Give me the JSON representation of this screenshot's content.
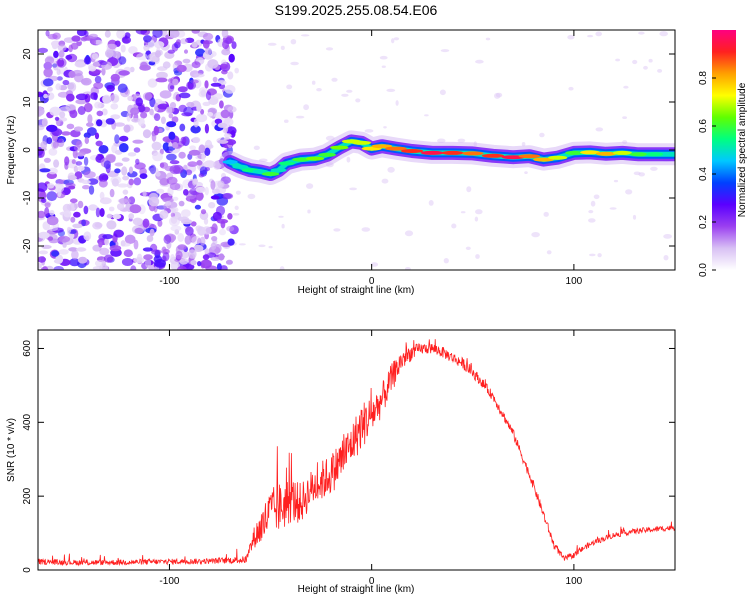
{
  "chart_data": [
    {
      "type": "heatmap",
      "title": "S199.2025.255.08.54.E06",
      "xlabel": "Height of straight line (km)",
      "ylabel": "Frequency (Hz)",
      "xlim": [
        -165,
        150
      ],
      "ylim": [
        -25,
        25
      ],
      "xticks": [
        -100,
        0,
        100
      ],
      "xtick_labels": [
        "-100",
        "0",
        "100"
      ],
      "yticks": [
        -20,
        -10,
        0,
        10,
        20
      ],
      "ytick_labels": [
        "-20",
        "-10",
        "0",
        "10",
        "20"
      ],
      "noise_region_x": [
        -165,
        -68
      ],
      "ridge": [
        {
          "x": -70,
          "y": -2.5,
          "amp": 0.45
        },
        {
          "x": -65,
          "y": -3.5,
          "amp": 0.5
        },
        {
          "x": -60,
          "y": -4.2,
          "amp": 0.55
        },
        {
          "x": -55,
          "y": -4.5,
          "amp": 0.5
        },
        {
          "x": -50,
          "y": -5.0,
          "amp": 0.6
        },
        {
          "x": -46,
          "y": -4.2,
          "amp": 0.5
        },
        {
          "x": -42,
          "y": -2.8,
          "amp": 0.55
        },
        {
          "x": -35,
          "y": -2.0,
          "amp": 0.6
        },
        {
          "x": -28,
          "y": -1.8,
          "amp": 0.65
        },
        {
          "x": -22,
          "y": -1.0,
          "amp": 0.6
        },
        {
          "x": -16,
          "y": 0.5,
          "amp": 0.65
        },
        {
          "x": -10,
          "y": 1.8,
          "amp": 0.7
        },
        {
          "x": -5,
          "y": 1.5,
          "amp": 0.7
        },
        {
          "x": 0,
          "y": 0.3,
          "amp": 0.75
        },
        {
          "x": 5,
          "y": 0.8,
          "amp": 0.8
        },
        {
          "x": 12,
          "y": 0.3,
          "amp": 0.85
        },
        {
          "x": 20,
          "y": -0.2,
          "amp": 0.9
        },
        {
          "x": 30,
          "y": -0.6,
          "amp": 0.95
        },
        {
          "x": 40,
          "y": -0.6,
          "amp": 0.9
        },
        {
          "x": 50,
          "y": -0.7,
          "amp": 0.85
        },
        {
          "x": 60,
          "y": -1.2,
          "amp": 0.9
        },
        {
          "x": 70,
          "y": -1.5,
          "amp": 0.95
        },
        {
          "x": 78,
          "y": -1.3,
          "amp": 0.85
        },
        {
          "x": 85,
          "y": -2.0,
          "amp": 0.8
        },
        {
          "x": 92,
          "y": -1.6,
          "amp": 0.7
        },
        {
          "x": 100,
          "y": -0.6,
          "amp": 0.6
        },
        {
          "x": 108,
          "y": -0.5,
          "amp": 0.75
        },
        {
          "x": 116,
          "y": -0.8,
          "amp": 0.8
        },
        {
          "x": 124,
          "y": -0.6,
          "amp": 0.7
        },
        {
          "x": 132,
          "y": -0.9,
          "amp": 0.6
        },
        {
          "x": 140,
          "y": -0.9,
          "amp": 0.55
        },
        {
          "x": 150,
          "y": -0.9,
          "amp": 0.5
        }
      ],
      "colorbar": {
        "label": "Normalized spectral amplitude",
        "ticks": [
          0.0,
          0.2,
          0.4,
          0.6,
          0.8
        ],
        "tick_labels": [
          "0.0",
          "0.2",
          "0.4",
          "0.6",
          "0.8"
        ],
        "range": [
          0,
          1
        ],
        "colors": [
          "#ffffff",
          "#d8c0f4",
          "#9b40f0",
          "#5a00ff",
          "#0040ff",
          "#00c8ff",
          "#00ff80",
          "#60ff00",
          "#ffff00",
          "#ffa000",
          "#ff2020",
          "#ff0080"
        ]
      }
    },
    {
      "type": "line",
      "title": "",
      "xlabel": "Height of straight line (km)",
      "ylabel": "SNR (10 * v/v)",
      "xlim": [
        -165,
        150
      ],
      "ylim": [
        0,
        650
      ],
      "xticks": [
        -100,
        0,
        100
      ],
      "xtick_labels": [
        "-100",
        "0",
        "100"
      ],
      "yticks": [
        0,
        200,
        400,
        600
      ],
      "ytick_labels": [
        "0",
        "200",
        "400",
        "600"
      ],
      "color": "#ff2020",
      "x": [
        -165,
        -140,
        -110,
        -80,
        -62,
        -58,
        -54,
        -50,
        -45,
        -40,
        -35,
        -30,
        -25,
        -20,
        -15,
        -10,
        -5,
        0,
        5,
        10,
        15,
        20,
        25,
        30,
        35,
        40,
        45,
        50,
        55,
        60,
        65,
        70,
        75,
        80,
        85,
        90,
        95,
        100,
        105,
        110,
        120,
        130,
        140,
        150
      ],
      "y": [
        22,
        20,
        22,
        24,
        28,
        90,
        120,
        160,
        170,
        190,
        180,
        220,
        240,
        260,
        300,
        340,
        390,
        420,
        460,
        520,
        570,
        590,
        600,
        600,
        590,
        575,
        560,
        535,
        505,
        470,
        420,
        370,
        300,
        230,
        150,
        70,
        30,
        40,
        60,
        75,
        95,
        105,
        110,
        115
      ],
      "noise": [
        15,
        15,
        15,
        15,
        20,
        60,
        110,
        120,
        140,
        130,
        110,
        100,
        110,
        110,
        120,
        110,
        130,
        110,
        90,
        80,
        60,
        40,
        30,
        30,
        30,
        30,
        30,
        30,
        25,
        25,
        25,
        25,
        25,
        25,
        25,
        20,
        15,
        15,
        15,
        15,
        15,
        15,
        15,
        15
      ]
    }
  ]
}
